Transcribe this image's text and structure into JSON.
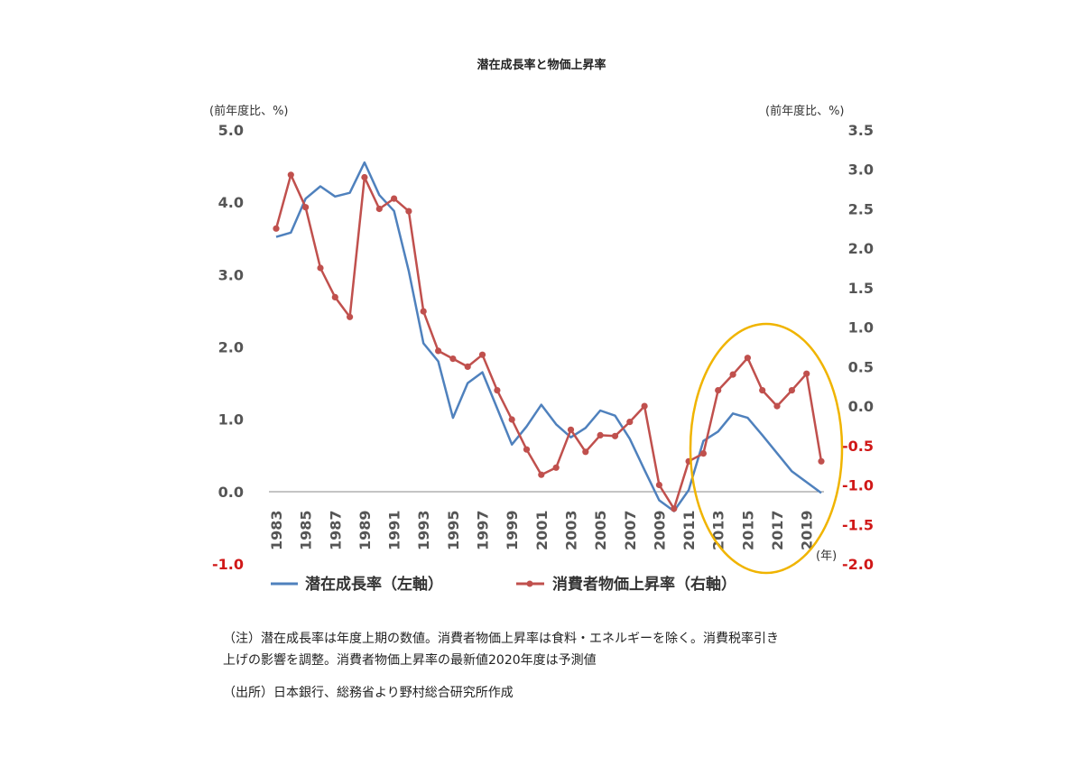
{
  "chart_data": {
    "type": "line",
    "title": "潜在成長率と物価上昇率",
    "y_left_unit": "(前年度比、%)",
    "y_right_unit": "(前年度比、%)",
    "x_unit": "(年)",
    "y_left_ticks": [
      "5.0",
      "4.0",
      "3.0",
      "2.0",
      "1.0",
      "0.0",
      "-1.0"
    ],
    "y_right_ticks": [
      "3.5",
      "3.0",
      "2.5",
      "2.0",
      "1.5",
      "1.0",
      "0.5",
      "0.0",
      "-0.5",
      "-1.0",
      "-1.5",
      "-2.0"
    ],
    "ylim_left": [
      -1.0,
      5.0
    ],
    "ylim_right": [
      -2.0,
      3.5
    ],
    "x_tick_labels": [
      "1983",
      "1985",
      "1987",
      "1989",
      "1991",
      "1993",
      "1995",
      "1997",
      "1999",
      "2001",
      "2003",
      "2005",
      "2007",
      "2009",
      "2011",
      "2013",
      "2015",
      "2017",
      "2019"
    ],
    "x": [
      1983,
      1984,
      1985,
      1986,
      1987,
      1988,
      1989,
      1990,
      1991,
      1992,
      1993,
      1994,
      1995,
      1996,
      1997,
      1998,
      1999,
      2000,
      2001,
      2002,
      2003,
      2004,
      2005,
      2006,
      2007,
      2008,
      2009,
      2010,
      2011,
      2012,
      2013,
      2014,
      2015,
      2016,
      2017,
      2018,
      2019,
      2020
    ],
    "series": [
      {
        "name": "潜在成長率（左軸）",
        "axis": "left",
        "color": "#4f81bd",
        "markers": false,
        "values": [
          3.52,
          3.58,
          4.05,
          4.22,
          4.08,
          4.13,
          4.55,
          4.1,
          3.88,
          3.05,
          2.05,
          1.8,
          1.02,
          1.5,
          1.65,
          1.15,
          0.65,
          0.9,
          1.2,
          0.93,
          0.75,
          0.88,
          1.12,
          1.05,
          0.73,
          0.3,
          -0.12,
          -0.27,
          0.02,
          0.7,
          0.83,
          1.08,
          1.02,
          0.78,
          0.53,
          0.28,
          0.13,
          -0.02
        ]
      },
      {
        "name": "消費者物価上昇率（右軸）",
        "axis": "right",
        "color": "#c0504d",
        "markers": true,
        "values": [
          2.25,
          2.93,
          2.52,
          1.75,
          1.38,
          1.13,
          2.9,
          2.5,
          2.63,
          2.47,
          1.2,
          0.7,
          0.6,
          0.5,
          0.65,
          0.2,
          -0.17,
          -0.55,
          -0.87,
          -0.78,
          -0.3,
          -0.58,
          -0.37,
          -0.38,
          -0.2,
          0.0,
          -1.0,
          -1.3,
          -0.7,
          -0.6,
          0.2,
          0.4,
          0.61,
          0.2,
          0.0,
          0.2,
          0.41,
          -0.7
        ]
      }
    ],
    "highlight": "2013-2020 (circled)"
  },
  "notes": {
    "line1": "（注）潜在成長率は年度上期の数値。消費者物価上昇率は食料・エネルギーを除く。消費税率引き",
    "line2": "上げの影響を調整。消費者物価上昇率の最新値2020年度は予測値",
    "line3": "（出所）日本銀行、総務省より野村総合研究所作成"
  },
  "colors": {
    "blue": "#4f81bd",
    "red": "#c0504d",
    "highlight": "#f0b400",
    "negative_tick": "#d01818"
  }
}
